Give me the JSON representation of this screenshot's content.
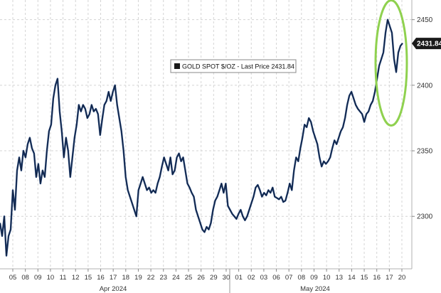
{
  "chart_data": {
    "type": "line",
    "title": "",
    "xlabel": "",
    "ylabel": "",
    "legend": {
      "text": "GOLD SPOT $/OZ - Last Price 2431.84",
      "placement": "top-center",
      "swatch_color": "#1a1a1a"
    },
    "last_price": "2431.84",
    "ylim": [
      2260,
      2465
    ],
    "y_ticks": [
      2300,
      2350,
      2400,
      2450
    ],
    "y_tick_labels": [
      "2300",
      "2350",
      "2400",
      "2450"
    ],
    "grid": true,
    "line_color": "#1f3f73",
    "highlight_color": "#8fd14f",
    "x_day_labels": [
      "05",
      "08",
      "09",
      "10",
      "11",
      "12",
      "15",
      "16",
      "17",
      "18",
      "19",
      "22",
      "23",
      "24",
      "25",
      "26",
      "29",
      "30",
      "01",
      "02",
      "03",
      "06",
      "07",
      "08",
      "09",
      "10",
      "13",
      "14",
      "15",
      "16",
      "17",
      "20"
    ],
    "month_labels": [
      "Apr 2024",
      "May 2024"
    ],
    "series": [
      {
        "values": [
          2295,
          2285,
          2300,
          2270,
          2285,
          2290,
          2320,
          2305,
          2335,
          2345,
          2335,
          2350,
          2345,
          2355,
          2360,
          2352,
          2348,
          2330,
          2340,
          2325,
          2335,
          2330,
          2350,
          2365,
          2370,
          2390,
          2400,
          2405,
          2380,
          2365,
          2345,
          2360,
          2350,
          2330,
          2345,
          2360,
          2370,
          2385,
          2380,
          2385,
          2382,
          2375,
          2378,
          2385,
          2380,
          2382,
          2378,
          2362,
          2374,
          2385,
          2388,
          2395,
          2388,
          2395,
          2400,
          2385,
          2375,
          2365,
          2350,
          2330,
          2320,
          2315,
          2310,
          2305,
          2300,
          2320,
          2325,
          2330,
          2325,
          2320,
          2322,
          2318,
          2320,
          2318,
          2325,
          2330,
          2338,
          2345,
          2340,
          2335,
          2345,
          2332,
          2335,
          2345,
          2348,
          2342,
          2345,
          2335,
          2325,
          2322,
          2318,
          2315,
          2305,
          2300,
          2295,
          2290,
          2288,
          2292,
          2290,
          2295,
          2305,
          2312,
          2315,
          2320,
          2325,
          2318,
          2325,
          2308,
          2305,
          2302,
          2300,
          2298,
          2302,
          2305,
          2300,
          2297,
          2300,
          2305,
          2310,
          2315,
          2322,
          2324,
          2320,
          2315,
          2318,
          2316,
          2320,
          2318,
          2322,
          2315,
          2314,
          2313,
          2315,
          2311,
          2312,
          2318,
          2325,
          2320,
          2335,
          2345,
          2342,
          2352,
          2360,
          2370,
          2368,
          2375,
          2372,
          2365,
          2360,
          2355,
          2345,
          2338,
          2342,
          2340,
          2342,
          2345,
          2352,
          2358,
          2355,
          2360,
          2365,
          2368,
          2375,
          2385,
          2392,
          2395,
          2390,
          2385,
          2382,
          2380,
          2378,
          2372,
          2378,
          2380,
          2385,
          2388,
          2395,
          2405,
          2415,
          2420,
          2425,
          2440,
          2450,
          2445,
          2440,
          2420,
          2410,
          2425,
          2430,
          2432
        ]
      }
    ]
  }
}
